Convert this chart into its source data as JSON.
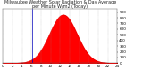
{
  "title": "Milwaukee Weather Solar Radiation & Day Average per Minute W/m2 (Today)",
  "bg_color": "#ffffff",
  "plot_bg_color": "#ffffff",
  "fill_color": "#ff0000",
  "line_color": "#cc0000",
  "marker_line_color": "#0000bb",
  "grid_color": "#999999",
  "num_points": 1440,
  "peak_value": 850,
  "peak_minute": 760,
  "sigma": 170,
  "marker_x": 370,
  "ylim": [
    0,
    950
  ],
  "xlim": [
    0,
    1440
  ],
  "tick_fontsize": 3,
  "title_fontsize": 3.5,
  "grid_linestyle": ":"
}
